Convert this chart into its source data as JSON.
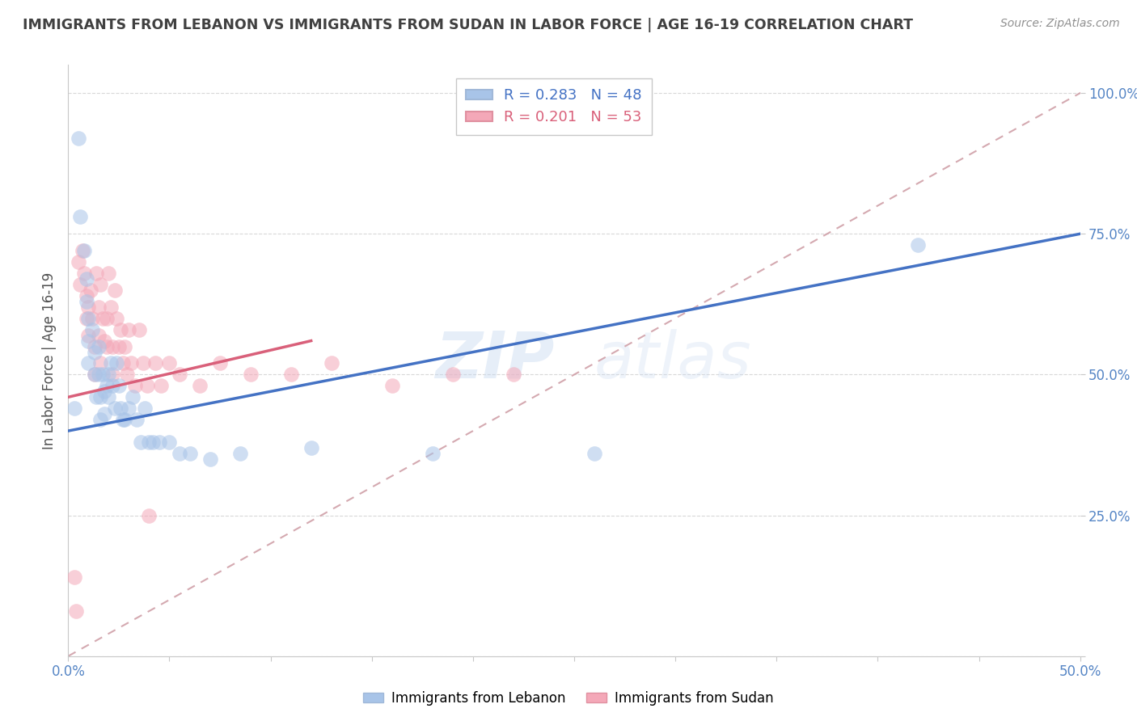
{
  "title": "IMMIGRANTS FROM LEBANON VS IMMIGRANTS FROM SUDAN IN LABOR FORCE | AGE 16-19 CORRELATION CHART",
  "source": "Source: ZipAtlas.com",
  "ylabel": "In Labor Force | Age 16-19",
  "xlim": [
    0.0,
    0.5
  ],
  "ylim": [
    0.0,
    1.05
  ],
  "lebanon_R": 0.283,
  "lebanon_N": 48,
  "sudan_R": 0.201,
  "sudan_N": 53,
  "lebanon_color": "#a8c4e8",
  "sudan_color": "#f4a8b8",
  "lebanon_line_color": "#4472c4",
  "sudan_line_color": "#d9607a",
  "diagonal_color": "#d0a0a8",
  "watermark_zip": "ZIP",
  "watermark_atlas": "atlas",
  "background_color": "#ffffff",
  "grid_color": "#d8d8d8",
  "title_color": "#404040",
  "axis_label_color": "#505050",
  "tick_color": "#5585c5",
  "lebanon_x": [
    0.003,
    0.005,
    0.006,
    0.008,
    0.009,
    0.009,
    0.01,
    0.01,
    0.01,
    0.012,
    0.013,
    0.013,
    0.014,
    0.015,
    0.015,
    0.016,
    0.016,
    0.017,
    0.018,
    0.018,
    0.019,
    0.02,
    0.02,
    0.021,
    0.022,
    0.023,
    0.024,
    0.025,
    0.026,
    0.027,
    0.028,
    0.03,
    0.032,
    0.034,
    0.036,
    0.038,
    0.04,
    0.042,
    0.045,
    0.05,
    0.055,
    0.06,
    0.07,
    0.085,
    0.12,
    0.18,
    0.26,
    0.42
  ],
  "lebanon_y": [
    0.44,
    0.92,
    0.78,
    0.72,
    0.67,
    0.63,
    0.6,
    0.56,
    0.52,
    0.58,
    0.54,
    0.5,
    0.46,
    0.55,
    0.5,
    0.46,
    0.42,
    0.5,
    0.47,
    0.43,
    0.48,
    0.5,
    0.46,
    0.52,
    0.48,
    0.44,
    0.52,
    0.48,
    0.44,
    0.42,
    0.42,
    0.44,
    0.46,
    0.42,
    0.38,
    0.44,
    0.38,
    0.38,
    0.38,
    0.38,
    0.36,
    0.36,
    0.35,
    0.36,
    0.37,
    0.36,
    0.36,
    0.73
  ],
  "sudan_x": [
    0.003,
    0.004,
    0.005,
    0.006,
    0.007,
    0.008,
    0.009,
    0.009,
    0.01,
    0.01,
    0.011,
    0.012,
    0.013,
    0.013,
    0.014,
    0.015,
    0.015,
    0.016,
    0.016,
    0.017,
    0.018,
    0.019,
    0.019,
    0.02,
    0.021,
    0.022,
    0.022,
    0.023,
    0.024,
    0.025,
    0.026,
    0.027,
    0.028,
    0.029,
    0.03,
    0.031,
    0.033,
    0.035,
    0.037,
    0.039,
    0.04,
    0.043,
    0.046,
    0.05,
    0.055,
    0.065,
    0.075,
    0.09,
    0.11,
    0.13,
    0.16,
    0.19,
    0.22
  ],
  "sudan_y": [
    0.14,
    0.08,
    0.7,
    0.66,
    0.72,
    0.68,
    0.64,
    0.6,
    0.62,
    0.57,
    0.65,
    0.6,
    0.55,
    0.5,
    0.68,
    0.62,
    0.57,
    0.52,
    0.66,
    0.6,
    0.56,
    0.6,
    0.55,
    0.68,
    0.62,
    0.55,
    0.5,
    0.65,
    0.6,
    0.55,
    0.58,
    0.52,
    0.55,
    0.5,
    0.58,
    0.52,
    0.48,
    0.58,
    0.52,
    0.48,
    0.25,
    0.52,
    0.48,
    0.52,
    0.5,
    0.48,
    0.52,
    0.5,
    0.5,
    0.52,
    0.48,
    0.5,
    0.5
  ],
  "leb_line_x0": 0.0,
  "leb_line_y0": 0.4,
  "leb_line_x1": 0.5,
  "leb_line_y1": 0.75,
  "sud_line_x0": 0.0,
  "sud_line_y0": 0.46,
  "sud_line_x1": 0.12,
  "sud_line_y1": 0.56
}
